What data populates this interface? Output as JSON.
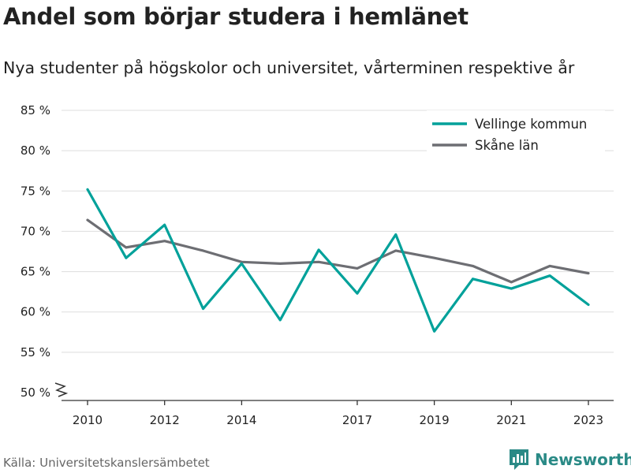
{
  "title": "Andel som börjar studera i hemlänet",
  "subtitle": "Nya studenter på högskolor och universitet, vårterminen respektive år",
  "source": "Källa: Universitetskanslersämbetet",
  "brand": "Newsworthy",
  "colors": {
    "vellinge": "#00a19a",
    "skane": "#6d6e73",
    "grid": "#dddddd",
    "brand": "#2a8a86"
  },
  "chart_data": {
    "type": "line",
    "title": "Andel som börjar studera i hemlänet",
    "subtitle": "Nya studenter på högskolor och universitet, vårterminen respektive år",
    "x": [
      2010,
      2011,
      2012,
      2013,
      2014,
      2015,
      2016,
      2017,
      2018,
      2019,
      2020,
      2021,
      2022,
      2023
    ],
    "xticks": [
      2010,
      2012,
      2014,
      2017,
      2019,
      2021,
      2023
    ],
    "yticks": [
      50,
      55,
      60,
      65,
      70,
      75,
      80,
      85
    ],
    "ytick_labels": [
      "50 %",
      "55 %",
      "60 %",
      "65 %",
      "70 %",
      "75 %",
      "80 %",
      "85 %"
    ],
    "ylim": [
      50,
      85
    ],
    "grid": true,
    "legend_position": "top-right",
    "series": [
      {
        "name": "Vellinge kommun",
        "color": "#00a19a",
        "values": [
          75.2,
          66.7,
          70.8,
          60.4,
          66.0,
          59.0,
          67.7,
          62.3,
          69.6,
          57.6,
          64.1,
          62.9,
          64.5,
          60.9
        ]
      },
      {
        "name": "Skåne län",
        "color": "#6d6e73",
        "values": [
          71.4,
          68.0,
          68.8,
          67.6,
          66.2,
          66.0,
          66.2,
          65.4,
          67.6,
          66.7,
          65.7,
          63.7,
          65.7,
          64.8
        ]
      }
    ]
  }
}
